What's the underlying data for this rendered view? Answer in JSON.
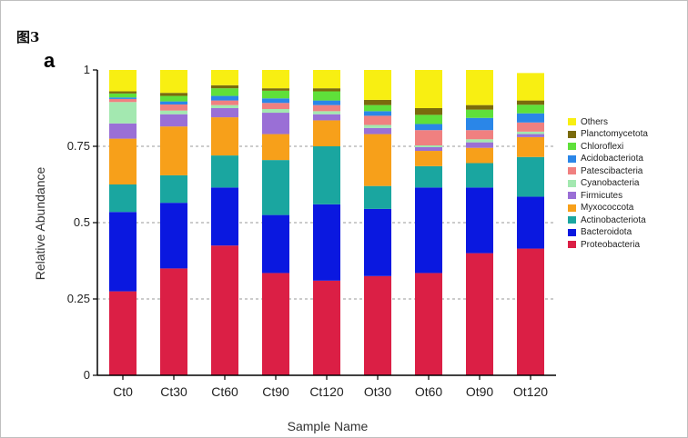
{
  "figure_label": "图3",
  "panel_label": "a",
  "chart_data": {
    "type": "bar",
    "stacked": true,
    "xlabel": "Sample Name",
    "ylabel": "Relative Abundance",
    "ylim": [
      0,
      1
    ],
    "yticks": [
      0,
      0.25,
      0.5,
      0.75,
      1
    ],
    "ytick_labels": [
      "0",
      "0.25",
      "0.5",
      "0.75",
      "1"
    ],
    "grid": "dashed horizontal at y ticks",
    "legend_position": "right",
    "categories": [
      "Ct0",
      "Ct30",
      "Ct60",
      "Ct90",
      "Ct120",
      "Ot30",
      "Ot60",
      "Ot90",
      "Ot120"
    ],
    "series": [
      {
        "name": "Proteobacteria",
        "color": "#db1f45",
        "values": [
          0.275,
          0.35,
          0.425,
          0.335,
          0.31,
          0.325,
          0.335,
          0.4,
          0.415
        ]
      },
      {
        "name": "Bacteroidota",
        "color": "#0a18e0",
        "values": [
          0.26,
          0.215,
          0.19,
          0.19,
          0.25,
          0.22,
          0.28,
          0.215,
          0.17
        ]
      },
      {
        "name": "Actinobacteriota",
        "color": "#1aa6a0",
        "values": [
          0.09,
          0.09,
          0.105,
          0.18,
          0.19,
          0.075,
          0.07,
          0.08,
          0.13
        ]
      },
      {
        "name": "Myxococcota",
        "color": "#f7a01a",
        "values": [
          0.15,
          0.16,
          0.125,
          0.085,
          0.085,
          0.17,
          0.05,
          0.05,
          0.065
        ]
      },
      {
        "name": "Firmicutes",
        "color": "#9a6fd6",
        "values": [
          0.05,
          0.04,
          0.03,
          0.07,
          0.02,
          0.02,
          0.012,
          0.018,
          0.01
        ]
      },
      {
        "name": "Cyanobacteria",
        "color": "#a3e8b0",
        "values": [
          0.07,
          0.012,
          0.01,
          0.012,
          0.01,
          0.01,
          0.006,
          0.01,
          0.008
        ]
      },
      {
        "name": "Patescibacteria",
        "color": "#f08080",
        "values": [
          0.01,
          0.02,
          0.015,
          0.02,
          0.02,
          0.03,
          0.05,
          0.03,
          0.03
        ]
      },
      {
        "name": "Acidobacteriota",
        "color": "#2a86e8",
        "values": [
          0.005,
          0.01,
          0.015,
          0.015,
          0.015,
          0.015,
          0.02,
          0.04,
          0.03
        ]
      },
      {
        "name": "Chloroflexi",
        "color": "#5fe03a",
        "values": [
          0.013,
          0.018,
          0.025,
          0.025,
          0.03,
          0.02,
          0.03,
          0.027,
          0.028
        ]
      },
      {
        "name": "Planctomycetota",
        "color": "#7a6b0c",
        "values": [
          0.007,
          0.01,
          0.01,
          0.008,
          0.01,
          0.017,
          0.022,
          0.015,
          0.014
        ]
      },
      {
        "name": "Others",
        "color": "#f8ef12",
        "values": [
          0.07,
          0.075,
          0.05,
          0.06,
          0.06,
          0.098,
          0.125,
          0.115,
          0.09
        ]
      }
    ],
    "legend_order": [
      "Others",
      "Planctomycetota",
      "Chloroflexi",
      "Acidobacteriota",
      "Patescibacteria",
      "Cyanobacteria",
      "Firmicutes",
      "Myxococcota",
      "Actinobacteriota",
      "Bacteroidota",
      "Proteobacteria"
    ]
  }
}
